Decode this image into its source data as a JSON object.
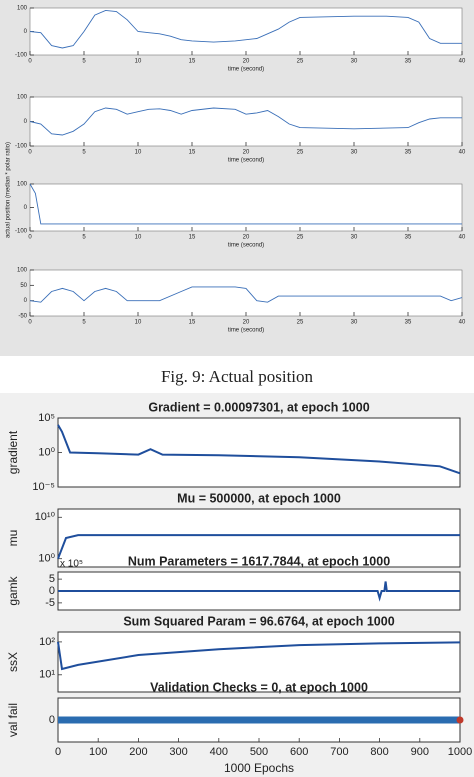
{
  "figure_ylabel": "actual position (median * polar ratio)",
  "caption": "Fig. 9: Actual position",
  "chart_data": [
    {
      "type": "line",
      "xlabel": "time (second)",
      "xlim": [
        0,
        40
      ],
      "ylim": [
        -100,
        100
      ],
      "xticks": [
        0,
        5,
        10,
        15,
        20,
        25,
        30,
        35,
        40
      ],
      "yticks": [
        100,
        0,
        -100
      ],
      "series": [
        {
          "color": "#3a6fb8",
          "x": [
            0,
            1,
            2,
            3,
            4,
            5,
            6,
            7,
            8,
            9,
            10,
            11,
            12,
            13,
            14,
            15,
            17,
            19,
            21,
            22,
            23,
            24,
            25,
            27,
            30,
            33,
            35,
            36,
            37,
            38,
            40
          ],
          "values": [
            0,
            -5,
            -60,
            -70,
            -60,
            0,
            70,
            90,
            85,
            50,
            0,
            -5,
            -10,
            -20,
            -35,
            -40,
            -45,
            -40,
            -30,
            -10,
            10,
            40,
            60,
            62,
            65,
            65,
            60,
            40,
            -30,
            -50,
            -50
          ]
        }
      ]
    },
    {
      "type": "line",
      "xlabel": "time (second)",
      "xlim": [
        0,
        40
      ],
      "ylim": [
        -100,
        100
      ],
      "xticks": [
        0,
        5,
        10,
        15,
        20,
        25,
        30,
        35,
        40
      ],
      "yticks": [
        100,
        0,
        -100
      ],
      "series": [
        {
          "color": "#3a6fb8",
          "x": [
            0,
            1,
            2,
            3,
            4,
            5,
            6,
            7,
            8,
            9,
            10,
            11,
            12,
            13,
            14,
            15,
            17,
            19,
            20,
            21,
            22,
            23,
            24,
            25,
            30,
            35,
            36,
            37,
            38,
            40
          ],
          "values": [
            0,
            -10,
            -50,
            -55,
            -40,
            -10,
            40,
            55,
            50,
            30,
            40,
            50,
            52,
            45,
            30,
            45,
            55,
            50,
            30,
            35,
            45,
            20,
            -10,
            -25,
            -30,
            -25,
            -5,
            10,
            15,
            15
          ]
        }
      ]
    },
    {
      "type": "line",
      "xlabel": "time (second)",
      "xlim": [
        0,
        40
      ],
      "ylim": [
        -100,
        100
      ],
      "xticks": [
        0,
        5,
        10,
        15,
        20,
        25,
        30,
        35,
        40
      ],
      "yticks": [
        100,
        0,
        -100
      ],
      "series": [
        {
          "color": "#3a6fb8",
          "x": [
            0,
            0.5,
            1,
            40
          ],
          "values": [
            100,
            60,
            -70,
            -70
          ]
        }
      ]
    },
    {
      "type": "line",
      "xlabel": "time (second)",
      "xlim": [
        0,
        40
      ],
      "ylim": [
        -50,
        100
      ],
      "xticks": [
        0,
        5,
        10,
        15,
        20,
        25,
        30,
        35,
        40
      ],
      "yticks": [
        100,
        50,
        0,
        -50
      ],
      "series": [
        {
          "color": "#3a6fb8",
          "x": [
            0,
            1,
            2,
            3,
            4,
            5,
            6,
            7,
            8,
            9,
            12,
            14,
            15,
            19,
            20,
            21,
            22,
            23,
            38,
            39,
            40
          ],
          "values": [
            0,
            -5,
            30,
            40,
            30,
            0,
            30,
            40,
            30,
            0,
            0,
            30,
            45,
            45,
            40,
            0,
            -5,
            15,
            15,
            0,
            10
          ]
        }
      ]
    },
    {
      "type": "line",
      "title": "Gradient = 0.00097301, at epoch 1000",
      "ylabel": "gradient",
      "log": true,
      "xlim": [
        0,
        1000
      ],
      "ylim": [
        1e-05,
        100000
      ],
      "yticks": [
        {
          "value": 100000,
          "label": "10⁵"
        },
        {
          "value": 1,
          "label": "10⁰"
        },
        {
          "value": 1e-05,
          "label": "10⁻⁵"
        }
      ],
      "series": [
        {
          "color": "#1f4e9c",
          "x": [
            0,
            10,
            30,
            100,
            200,
            230,
            260,
            400,
            600,
            800,
            950,
            1000
          ],
          "values": [
            10000,
            1000,
            1,
            0.8,
            0.5,
            3,
            0.5,
            0.4,
            0.2,
            0.05,
            0.01,
            0.00097301
          ]
        }
      ]
    },
    {
      "type": "line",
      "title": "Mu = 500000, at epoch 1000",
      "ylabel": "mu",
      "log": true,
      "xlim": [
        0,
        1000
      ],
      "ylim": [
        0.01,
        1000000000000
      ],
      "yticks": [
        {
          "value": 10000000000,
          "label": "10¹⁰"
        },
        {
          "value": 1,
          "label": "10⁰"
        }
      ],
      "series": [
        {
          "color": "#1f4e9c",
          "x": [
            0,
            20,
            50,
            1000
          ],
          "values": [
            1,
            100000,
            500000,
            500000
          ]
        }
      ]
    },
    {
      "type": "line",
      "title": "Num Parameters = 1617.7844, at epoch 1000",
      "ylabel": "gamk",
      "y_multiplier": "x 10⁵",
      "xlim": [
        0,
        1000
      ],
      "ylim": [
        -8,
        8
      ],
      "yticks": [
        5,
        0,
        -5
      ],
      "series": [
        {
          "color": "#1f4e9c",
          "x": [
            0,
            795,
            800,
            805,
            812,
            815,
            818,
            1000
          ],
          "values": [
            0,
            0,
            -3,
            0,
            0,
            4,
            0,
            0
          ]
        }
      ]
    },
    {
      "type": "line",
      "title": "Sum Squared Param = 96.6764, at epoch 1000",
      "ylabel": "ssX",
      "log": true,
      "xlim": [
        0,
        1000
      ],
      "ylim": [
        3,
        200
      ],
      "yticks": [
        {
          "value": 100,
          "label": "10²"
        },
        {
          "value": 10,
          "label": "10¹"
        }
      ],
      "series": [
        {
          "color": "#1f4e9c",
          "x": [
            0,
            10,
            50,
            200,
            400,
            600,
            800,
            1000
          ],
          "values": [
            100,
            15,
            20,
            40,
            60,
            80,
            90,
            96.6764
          ]
        }
      ]
    },
    {
      "type": "line",
      "title": "Validation Checks = 0, at epoch 1000",
      "ylabel": "val fail",
      "xlabel": "1000 Epochs",
      "xlim": [
        0,
        1000
      ],
      "ylim": [
        -1,
        1
      ],
      "yticks": [
        0
      ],
      "end_marker_color": "#c0392b",
      "xticks": [
        0,
        100,
        200,
        300,
        400,
        500,
        600,
        700,
        800,
        900,
        1000
      ],
      "series": [
        {
          "color": "#2b6cb0",
          "x": [
            0,
            1000
          ],
          "values": [
            0,
            0
          ]
        }
      ]
    }
  ]
}
